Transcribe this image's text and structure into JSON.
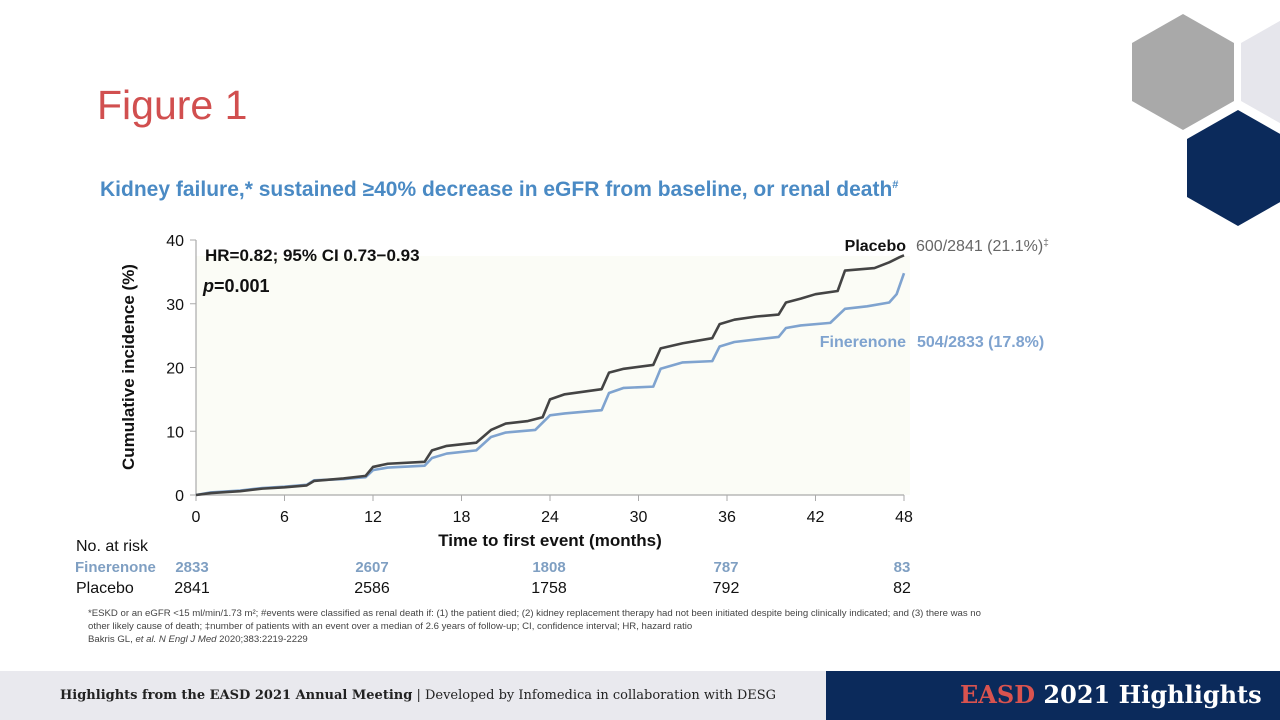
{
  "slide": {
    "title": "Figure 1",
    "colors": {
      "title": "#d14f4f",
      "subtitle": "#4a8ac4",
      "placebo": "#444444",
      "finerenone": "#7fa3cf",
      "navy": "#0b2a5b",
      "gray_hex": "#a9a9a9",
      "light_hex": "#e6e6ec"
    }
  },
  "chart_data": {
    "type": "line",
    "title": "Kidney failure,* sustained ≥40% decrease in eGFR from baseline, or renal death",
    "title_superscript": "#",
    "xlabel": "Time to first event (months)",
    "ylabel": "Cumulative incidence (%)",
    "xlim": [
      0,
      48
    ],
    "ylim": [
      0,
      40
    ],
    "xticks": [
      0,
      6,
      12,
      18,
      24,
      30,
      36,
      42,
      48
    ],
    "yticks": [
      0,
      10,
      20,
      30,
      40
    ],
    "grid": false,
    "annotations": {
      "hr": "HR=0.82; 95% CI 0.73−0.93",
      "p_label": "p",
      "p_value": "=0.001"
    },
    "series": [
      {
        "name": "Placebo",
        "summary": "600/2841 (21.1%)",
        "summary_mark": "‡",
        "points": [
          [
            0,
            0
          ],
          [
            1,
            0.3
          ],
          [
            3,
            0.6
          ],
          [
            4.5,
            1.0
          ],
          [
            6,
            1.2
          ],
          [
            7.5,
            1.5
          ],
          [
            8,
            2.2
          ],
          [
            10,
            2.6
          ],
          [
            11.5,
            3.0
          ],
          [
            12,
            4.4
          ],
          [
            13,
            4.9
          ],
          [
            15.5,
            5.2
          ],
          [
            16,
            7.0
          ],
          [
            17,
            7.7
          ],
          [
            19,
            8.2
          ],
          [
            20,
            10.2
          ],
          [
            21,
            11.2
          ],
          [
            22.5,
            11.6
          ],
          [
            23.5,
            12.2
          ],
          [
            24,
            15.0
          ],
          [
            25,
            15.8
          ],
          [
            27.5,
            16.6
          ],
          [
            28,
            19.2
          ],
          [
            29,
            19.8
          ],
          [
            31,
            20.4
          ],
          [
            31.5,
            23.0
          ],
          [
            33,
            23.8
          ],
          [
            35,
            24.6
          ],
          [
            35.5,
            26.8
          ],
          [
            36.5,
            27.5
          ],
          [
            38,
            28.0
          ],
          [
            39.5,
            28.3
          ],
          [
            40,
            30.2
          ],
          [
            41,
            30.8
          ],
          [
            42,
            31.5
          ],
          [
            43.5,
            32.0
          ],
          [
            44,
            35.2
          ],
          [
            46,
            35.6
          ],
          [
            47,
            36.5
          ],
          [
            47.7,
            37.3
          ],
          [
            48,
            37.6
          ]
        ]
      },
      {
        "name": "Finerenone",
        "summary": "504/2833 (17.8%)",
        "summary_mark": "",
        "points": [
          [
            0,
            0
          ],
          [
            1,
            0.4
          ],
          [
            3,
            0.7
          ],
          [
            4.5,
            1.1
          ],
          [
            6,
            1.3
          ],
          [
            7.5,
            1.6
          ],
          [
            8,
            2.3
          ],
          [
            10,
            2.5
          ],
          [
            11.5,
            2.8
          ],
          [
            12,
            3.9
          ],
          [
            13,
            4.3
          ],
          [
            15.5,
            4.6
          ],
          [
            16,
            5.8
          ],
          [
            17,
            6.5
          ],
          [
            19,
            7.0
          ],
          [
            20,
            9.1
          ],
          [
            21,
            9.8
          ],
          [
            23,
            10.2
          ],
          [
            24,
            12.5
          ],
          [
            25,
            12.8
          ],
          [
            27.5,
            13.3
          ],
          [
            28,
            16.0
          ],
          [
            29,
            16.8
          ],
          [
            31,
            17.0
          ],
          [
            31.5,
            19.8
          ],
          [
            33,
            20.8
          ],
          [
            35,
            21.0
          ],
          [
            35.5,
            23.3
          ],
          [
            36.5,
            24.0
          ],
          [
            38,
            24.4
          ],
          [
            39.5,
            24.8
          ],
          [
            40,
            26.2
          ],
          [
            41,
            26.6
          ],
          [
            43,
            27.0
          ],
          [
            44,
            29.2
          ],
          [
            45.5,
            29.6
          ],
          [
            47,
            30.2
          ],
          [
            47.5,
            31.5
          ],
          [
            48,
            34.8
          ]
        ]
      }
    ],
    "at_risk": {
      "label": "No. at risk",
      "times": [
        0,
        12,
        24,
        36,
        48
      ],
      "rows": [
        {
          "name": "Finerenone",
          "values": [
            "2833",
            "2607",
            "1808",
            "787",
            "83"
          ]
        },
        {
          "name": "Placebo",
          "values": [
            "2841",
            "2586",
            "1758",
            "792",
            "82"
          ]
        }
      ]
    }
  },
  "footnotes": {
    "line1": "*ESKD or an eGFR <15 ml/min/1.73 m²; #events were classified as renal death if: (1) the patient died; (2) kidney replacement therapy had not been initiated despite being clinically indicated; and (3) there was no",
    "line2": "other likely cause of death; ‡number of patients with an event over a median of 2.6 years of follow-up; CI, confidence interval; HR, hazard ratio",
    "ref_authors": "Bakris GL, ",
    "ref_etal": "et al. N Engl J Med",
    "ref_rest": " 2020;383:2219-2229"
  },
  "footer": {
    "bold": "Highlights from the EASD 2021 Annual Meeting",
    "rest": " | Developed by Infomedica in collaboration with DESG",
    "brand_red": "EASD",
    "brand_white": " 2021 Highlights"
  }
}
